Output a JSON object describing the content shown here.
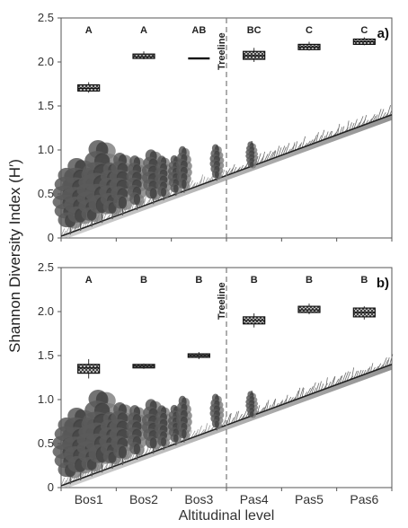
{
  "chart_data": [
    {
      "panel_label": "a)",
      "type": "box",
      "treeline_label": "Treeline",
      "categories": [
        "Bos1",
        "Bos2",
        "Bos3",
        "Pas4",
        "Pas5",
        "Pas6"
      ],
      "ylim": [
        0,
        2.5
      ],
      "yticks": [
        "0",
        "0.5",
        "1.0",
        "1.5",
        "2.0",
        "2.5"
      ],
      "letters": [
        "A",
        "A",
        "AB",
        "BC",
        "C",
        "C"
      ],
      "boxes": [
        {
          "category": "Bos1",
          "low": 1.65,
          "q1": 1.67,
          "median": 1.7,
          "q3": 1.74,
          "high": 1.77
        },
        {
          "category": "Bos2",
          "low": 2.03,
          "q1": 2.04,
          "median": 2.06,
          "q3": 2.09,
          "high": 2.12
        },
        {
          "category": "Bos3",
          "low": 2.04,
          "q1": 2.04,
          "median": 2.04,
          "q3": 2.04,
          "high": 2.04
        },
        {
          "category": "Pas4",
          "low": 2.0,
          "q1": 2.03,
          "median": 2.07,
          "q3": 2.12,
          "high": 2.16
        },
        {
          "category": "Pas5",
          "low": 2.13,
          "q1": 2.14,
          "median": 2.17,
          "q3": 2.2,
          "high": 2.23
        },
        {
          "category": "Pas6",
          "low": 2.19,
          "q1": 2.2,
          "median": 2.23,
          "q3": 2.26,
          "high": 2.28
        }
      ]
    },
    {
      "panel_label": "b)",
      "type": "box",
      "treeline_label": "Treeline",
      "categories": [
        "Bos1",
        "Bos2",
        "Bos3",
        "Pas4",
        "Pas5",
        "Pas6"
      ],
      "ylim": [
        0,
        2.5
      ],
      "yticks": [
        "0",
        "0.5",
        "1.0",
        "1.5",
        "2.0",
        "2.5"
      ],
      "letters": [
        "A",
        "B",
        "B",
        "B",
        "B",
        "B"
      ],
      "boxes": [
        {
          "category": "Bos1",
          "low": 1.24,
          "q1": 1.3,
          "median": 1.36,
          "q3": 1.4,
          "high": 1.46
        },
        {
          "category": "Bos2",
          "low": 1.35,
          "q1": 1.36,
          "median": 1.38,
          "q3": 1.4,
          "high": 1.41
        },
        {
          "category": "Bos3",
          "low": 1.46,
          "q1": 1.48,
          "median": 1.5,
          "q3": 1.52,
          "high": 1.54
        },
        {
          "category": "Pas4",
          "low": 1.82,
          "q1": 1.86,
          "median": 1.9,
          "q3": 1.94,
          "high": 1.98
        },
        {
          "category": "Pas5",
          "low": 1.97,
          "q1": 1.99,
          "median": 2.02,
          "q3": 2.06,
          "high": 2.09
        },
        {
          "category": "Pas6",
          "low": 1.91,
          "q1": 1.94,
          "median": 1.99,
          "q3": 2.04,
          "high": 2.06
        }
      ]
    }
  ],
  "ylabel": "Shannon Diversity Index (H′)",
  "xlabel": "Altitudinal level"
}
